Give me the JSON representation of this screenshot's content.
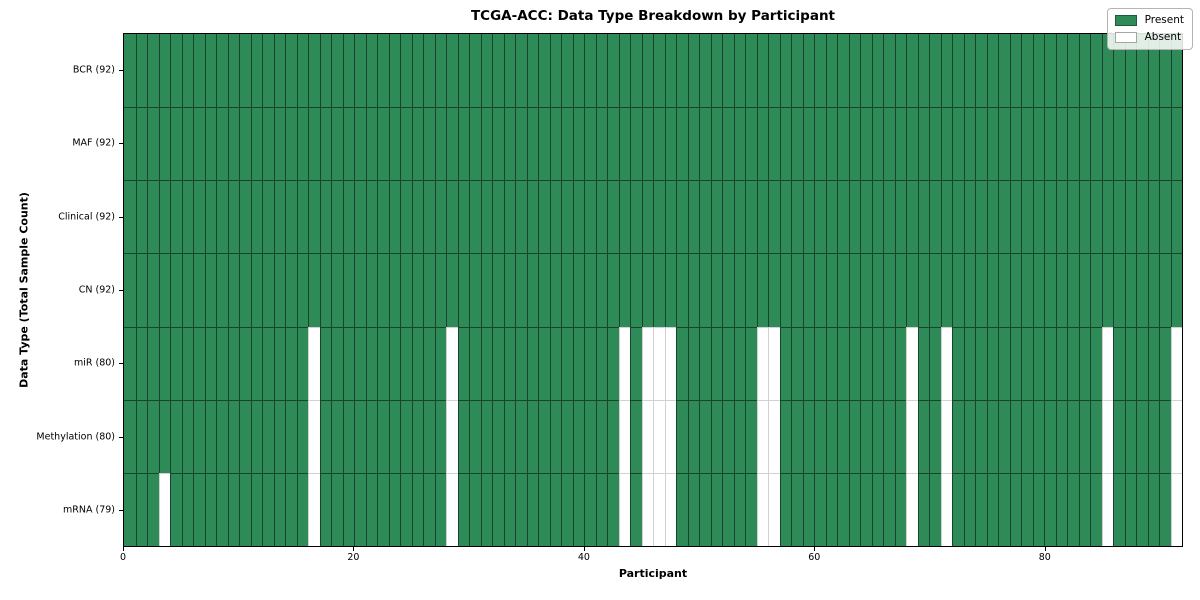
{
  "chart_data": {
    "type": "heatmap",
    "title": "TCGA-ACC: Data Type Breakdown by Participant",
    "xlabel": "Participant",
    "ylabel": "Data Type (Total Sample Count)",
    "n_participants": 92,
    "x_ticks": [
      0,
      20,
      40,
      60,
      80
    ],
    "x_range": [
      0,
      92
    ],
    "grid": false,
    "rows": [
      {
        "label": "BCR (92)",
        "data_type": "BCR",
        "present_count": 92,
        "absent_participants": []
      },
      {
        "label": "MAF (92)",
        "data_type": "MAF",
        "present_count": 92,
        "absent_participants": []
      },
      {
        "label": "Clinical (92)",
        "data_type": "Clinical",
        "present_count": 92,
        "absent_participants": []
      },
      {
        "label": "CN (92)",
        "data_type": "CN",
        "present_count": 92,
        "absent_participants": []
      },
      {
        "label": "miR (80)",
        "data_type": "miR",
        "present_count": 80,
        "absent_participants": [
          16,
          28,
          43,
          45,
          46,
          47,
          55,
          56,
          68,
          71,
          85,
          91
        ]
      },
      {
        "label": "Methylation (80)",
        "data_type": "Methylation",
        "present_count": 80,
        "absent_participants": [
          16,
          28,
          43,
          45,
          46,
          47,
          55,
          56,
          68,
          71,
          85,
          91
        ]
      },
      {
        "label": "mRNA (79)",
        "data_type": "mRNA",
        "present_count": 79,
        "absent_participants": [
          3,
          16,
          28,
          43,
          45,
          46,
          47,
          55,
          56,
          68,
          71,
          85,
          91
        ]
      }
    ],
    "legend": {
      "position": "upper right",
      "entries": [
        {
          "label": "Present",
          "color": "#2e8b57"
        },
        {
          "label": "Absent",
          "color": "#ffffff"
        }
      ]
    },
    "colors": {
      "present": "#2e8b57",
      "absent": "#ffffff",
      "cell_edge": "rgba(0,0,0,0.5)"
    }
  }
}
